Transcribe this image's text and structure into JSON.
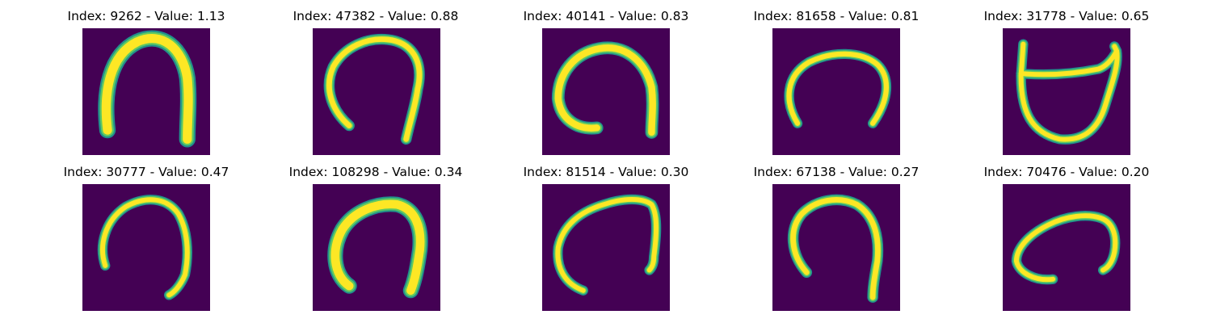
{
  "grid": {
    "panels": [
      {
        "index": "9262",
        "value": "1.13",
        "title": "Index: 9262 - Value: 1.13",
        "glyph": "arch-upright"
      },
      {
        "index": "47382",
        "value": "0.88",
        "title": "Index: 47382 - Value: 0.88",
        "glyph": "arch-open"
      },
      {
        "index": "40141",
        "value": "0.83",
        "title": "Index: 40141 - Value: 0.83",
        "glyph": "arch-curled-left"
      },
      {
        "index": "81658",
        "value": "0.81",
        "title": "Index: 81658 - Value: 0.81",
        "glyph": "arch-wide-low"
      },
      {
        "index": "31778",
        "value": "0.65",
        "title": "Index: 31778 - Value: 0.65",
        "glyph": "loop-boxed"
      },
      {
        "index": "30777",
        "value": "0.47",
        "title": "Index: 30777 - Value: 0.47",
        "glyph": "arch-slanted"
      },
      {
        "index": "108298",
        "value": "0.34",
        "title": "Index: 108298 - Value: 0.34",
        "glyph": "arch-thick"
      },
      {
        "index": "81514",
        "value": "0.30",
        "title": "Index: 81514 - Value: 0.30",
        "glyph": "arch-leaning-right"
      },
      {
        "index": "67138",
        "value": "0.27",
        "title": "Index: 67138 - Value: 0.27",
        "glyph": "arch-tall"
      },
      {
        "index": "70476",
        "value": "0.20",
        "title": "Index: 70476 - Value: 0.20",
        "glyph": "arch-flat-curled"
      }
    ]
  },
  "colors": {
    "background": "#ffffff",
    "image_background": "#440154",
    "stroke_edge": "#21918c",
    "stroke_mid": "#5ec962",
    "stroke_core": "#fde725",
    "text": "#000000"
  }
}
